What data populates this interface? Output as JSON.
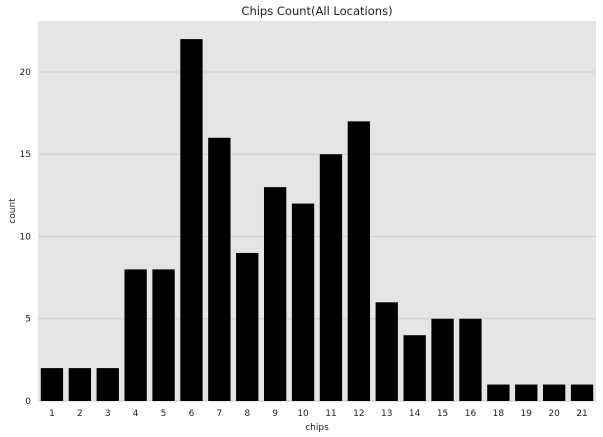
{
  "chart_data": {
    "type": "bar",
    "title": "Chips Count(All Locations)",
    "xlabel": "chips",
    "ylabel": "count",
    "categories": [
      "1",
      "2",
      "3",
      "4",
      "5",
      "6",
      "7",
      "8",
      "9",
      "10",
      "11",
      "12",
      "13",
      "14",
      "15",
      "16",
      "18",
      "19",
      "20",
      "21"
    ],
    "values": [
      2,
      2,
      2,
      8,
      8,
      22,
      16,
      9,
      13,
      12,
      15,
      17,
      6,
      4,
      5,
      5,
      1,
      1,
      1,
      1
    ],
    "yticks": [
      0,
      5,
      10,
      15,
      20
    ],
    "ylim": [
      0,
      23.1
    ],
    "grid": true,
    "colors": {
      "bar": "#000000",
      "plot_background": "#e5e5e5",
      "grid": "#cfcfcf"
    }
  }
}
